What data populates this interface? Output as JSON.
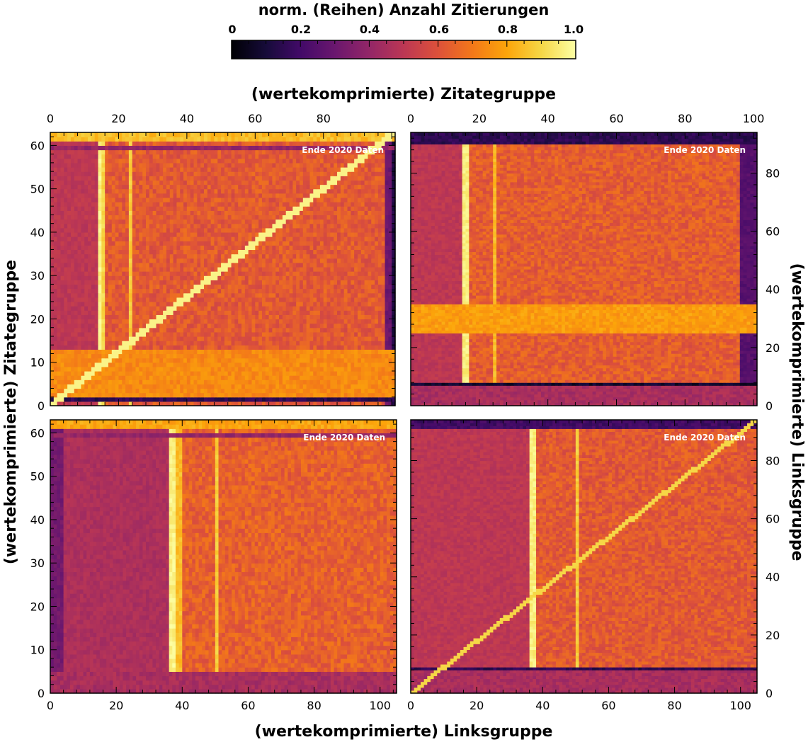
{
  "colorbar": {
    "title": "norm. (Reihen) Anzahl Zitierungen",
    "ticks": [
      "0",
      "0.2",
      "0.4",
      "0.6",
      "0.8",
      "1.0"
    ],
    "range": [
      0,
      1
    ],
    "colormap": "inferno"
  },
  "axis_titles": {
    "top_x": "(wertekomprimierte) Zitategruppe",
    "bottom_x": "(wertekomprimierte) Linksgruppe",
    "left_y": "(wertekomprimierte) Zitategruppe",
    "right_y": "(wertekomprimierte) Linksgruppe"
  },
  "chart_data": [
    {
      "type": "heatmap",
      "panel": "top-left",
      "annotation": "Ende 2020 Daten",
      "x_axis": {
        "label": "(wertekomprimierte) Zitategruppe",
        "position": "top",
        "range": [
          0,
          101
        ],
        "ticks": [
          0,
          20,
          40,
          60,
          80
        ]
      },
      "y_axis": {
        "label": "(wertekomprimierte) Zitategruppe",
        "position": "left",
        "range": [
          0,
          63
        ],
        "ticks": [
          0,
          10,
          20,
          30,
          40,
          50,
          60
        ]
      },
      "grid_size": [
        101,
        63
      ],
      "base_value": 0.62,
      "value_pattern": {
        "diagonal": 0.97,
        "column_bands": [
          {
            "x": [
              0,
              14
            ],
            "value": 0.5
          },
          {
            "x": [
              14,
              15
            ],
            "value": 0.97
          },
          {
            "x": [
              15,
              16
            ],
            "value": 0.9
          },
          {
            "x": [
              23,
              24
            ],
            "value": 0.88
          },
          {
            "x": [
              98,
              100
            ],
            "value": 0.3
          },
          {
            "x": [
              100,
              101
            ],
            "value": 0.12
          }
        ],
        "row_bands": [
          {
            "y": [
              1,
              2
            ],
            "value": 0.15
          },
          {
            "y": [
              2,
              13
            ],
            "value": 0.74
          },
          {
            "y": [
              59,
              60
            ],
            "value": 0.4
          },
          {
            "y": [
              61,
              63
            ],
            "value": 0.85
          }
        ]
      }
    },
    {
      "type": "heatmap",
      "panel": "top-right",
      "annotation": "Ende 2020 Daten",
      "x_axis": {
        "label": "(wertekomprimierte) Zitategruppe",
        "position": "top",
        "range": [
          0,
          101
        ],
        "ticks": [
          0,
          20,
          40,
          60,
          80,
          100
        ]
      },
      "y_axis": {
        "label": "(wertekomprimierte) Linksgruppe",
        "position": "right",
        "range": [
          0,
          94
        ],
        "ticks": [
          0,
          20,
          40,
          60,
          80
        ]
      },
      "grid_size": [
        101,
        94
      ],
      "base_value": 0.63,
      "value_pattern": {
        "column_bands": [
          {
            "x": [
              0,
              15
            ],
            "value": 0.5
          },
          {
            "x": [
              15,
              17
            ],
            "value": 0.96
          },
          {
            "x": [
              24,
              25
            ],
            "value": 0.85
          },
          {
            "x": [
              96,
              101
            ],
            "value": 0.25
          }
        ],
        "row_bands": [
          {
            "y": [
              0,
              7
            ],
            "value": 0.45
          },
          {
            "y": [
              7,
              8
            ],
            "value": 0.08
          },
          {
            "y": [
              25,
              35
            ],
            "value": 0.78
          },
          {
            "y": [
              90,
              94
            ],
            "value": 0.15
          }
        ]
      }
    },
    {
      "type": "heatmap",
      "panel": "bottom-left",
      "annotation": "Ende 2020 Daten",
      "x_axis": {
        "label": "(wertekomprimierte) Linksgruppe",
        "position": "bottom",
        "range": [
          0,
          105
        ],
        "ticks": [
          0,
          20,
          40,
          60,
          80,
          100
        ]
      },
      "y_axis": {
        "label": "(wertekomprimierte) Zitategruppe",
        "position": "left",
        "range": [
          0,
          63
        ],
        "ticks": [
          0,
          10,
          20,
          30,
          40,
          50,
          60
        ]
      },
      "grid_size": [
        105,
        63
      ],
      "base_value": 0.64,
      "value_pattern": {
        "column_bands": [
          {
            "x": [
              0,
              4
            ],
            "value": 0.32
          },
          {
            "x": [
              4,
              36
            ],
            "value": 0.46
          },
          {
            "x": [
              36,
              38
            ],
            "value": 0.97
          },
          {
            "x": [
              38,
              40
            ],
            "value": 0.85
          },
          {
            "x": [
              50,
              51
            ],
            "value": 0.88
          }
        ],
        "row_bands": [
          {
            "y": [
              0,
              5
            ],
            "value": 0.45
          },
          {
            "y": [
              59,
              60
            ],
            "value": 0.4
          },
          {
            "y": [
              61,
              63
            ],
            "value": 0.8
          }
        ]
      }
    },
    {
      "type": "heatmap",
      "panel": "bottom-right",
      "annotation": "Ende 2020 Daten",
      "x_axis": {
        "label": "(wertekomprimierte) Linksgruppe",
        "position": "bottom",
        "range": [
          0,
          105
        ],
        "ticks": [
          0,
          20,
          40,
          60,
          80,
          100
        ]
      },
      "y_axis": {
        "label": "(wertekomprimierte) Linksgruppe",
        "position": "right",
        "range": [
          0,
          94
        ],
        "ticks": [
          0,
          20,
          40,
          60,
          80
        ]
      },
      "grid_size": [
        105,
        94
      ],
      "base_value": 0.62,
      "value_pattern": {
        "diagonal": 0.9,
        "column_bands": [
          {
            "x": [
              0,
              36
            ],
            "value": 0.5
          },
          {
            "x": [
              36,
              38
            ],
            "value": 0.96
          },
          {
            "x": [
              50,
              51
            ],
            "value": 0.88
          }
        ],
        "row_bands": [
          {
            "y": [
              0,
              8
            ],
            "value": 0.45
          },
          {
            "y": [
              8,
              9
            ],
            "value": 0.15
          },
          {
            "y": [
              91,
              94
            ],
            "value": 0.2
          }
        ]
      }
    }
  ]
}
